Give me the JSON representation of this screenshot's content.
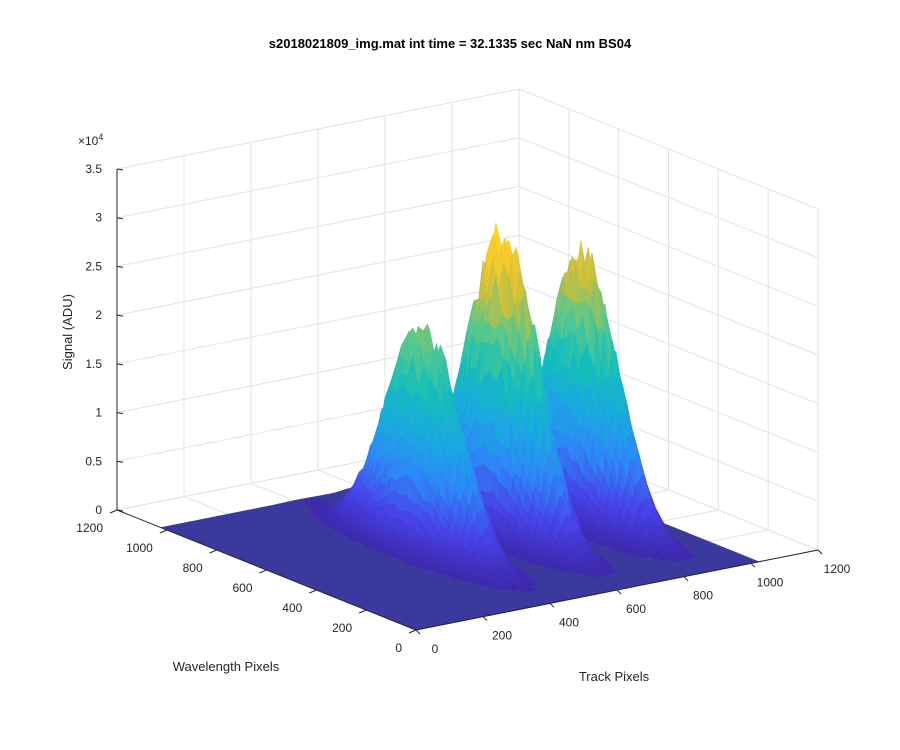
{
  "chart_data": {
    "type": "surface",
    "title": "s2018021809_img.mat int time = 32.1335 sec  NaN nm BS04",
    "xlabel": "Track Pixels",
    "ylabel": "Wavelength Pixels",
    "zlabel": "Signal (ADU)",
    "z_exponent": "×10",
    "z_exponent_power": "4",
    "xlim": [
      0,
      1200
    ],
    "ylim": [
      0,
      1200
    ],
    "zlim": [
      0,
      35000
    ],
    "x_ticks": [
      "0",
      "200",
      "400",
      "600",
      "800",
      "1000",
      "1200"
    ],
    "y_ticks": [
      "0",
      "200",
      "400",
      "600",
      "800",
      "1000",
      "1200"
    ],
    "z_ticks": [
      "0",
      "0.5",
      "1",
      "1.5",
      "2",
      "2.5",
      "3",
      "3.5"
    ],
    "x_range": [
      0,
      1024
    ],
    "y_range": [
      0,
      1024
    ],
    "grid": true,
    "colormap": "parula",
    "colors": [
      "#3e26a8",
      "#4744e9",
      "#2e87f7",
      "#1aa9e0",
      "#14bebb",
      "#55c88f",
      "#c4bf3f",
      "#f9cb2c",
      "#f9fb15"
    ],
    "baseline_color": "#3b3b9e",
    "peaks": [
      {
        "track_center": 410,
        "track_width": 78,
        "wavelength_center": 520,
        "wavelength_width": 330,
        "peak": 22500
      },
      {
        "track_center": 640,
        "track_width": 72,
        "wavelength_center": 510,
        "wavelength_width": 320,
        "peak": 30500
      },
      {
        "track_center": 870,
        "track_width": 74,
        "wavelength_center": 500,
        "wavelength_width": 320,
        "peak": 27000
      }
    ],
    "minor_bumps": [
      {
        "track": 690,
        "wavelength": 980,
        "peak": 700
      },
      {
        "track": 420,
        "wavelength": 970,
        "peak": 500
      },
      {
        "track": 560,
        "wavelength": 1000,
        "peak": 400
      }
    ]
  }
}
